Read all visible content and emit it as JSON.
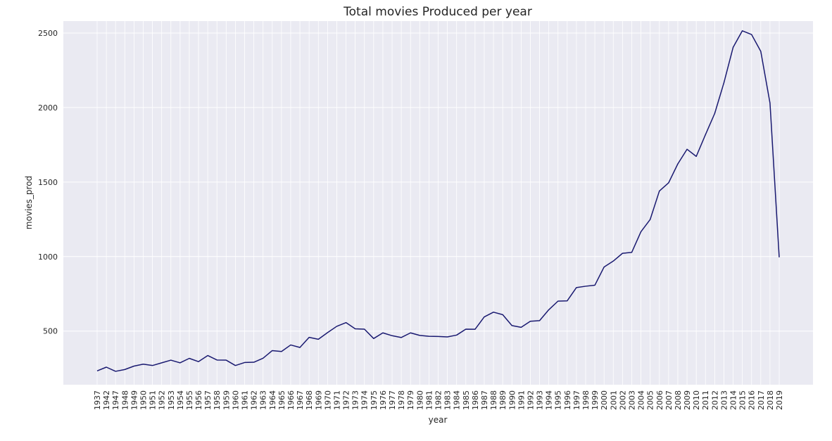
{
  "chart_data": {
    "type": "line",
    "title": "Total movies Produced per year",
    "xlabel": "year",
    "ylabel": "movies_prod",
    "ylim": [
      140,
      2580
    ],
    "yticks": [
      500,
      1000,
      1500,
      2000,
      2500
    ],
    "grid": true,
    "legend": "none",
    "colors": {
      "background": "#eaeaf2",
      "grid": "#ffffff",
      "line": "#191970"
    },
    "categories": [
      "1937",
      "1942",
      "1947",
      "1948",
      "1949",
      "1950",
      "1951",
      "1952",
      "1953",
      "1954",
      "1955",
      "1956",
      "1957",
      "1958",
      "1959",
      "1960",
      "1961",
      "1962",
      "1963",
      "1964",
      "1965",
      "1966",
      "1967",
      "1968",
      "1969",
      "1970",
      "1971",
      "1972",
      "1973",
      "1974",
      "1975",
      "1976",
      "1977",
      "1978",
      "1979",
      "1980",
      "1981",
      "1982",
      "1983",
      "1984",
      "1985",
      "1986",
      "1987",
      "1988",
      "1989",
      "1990",
      "1991",
      "1992",
      "1993",
      "1994",
      "1995",
      "1996",
      "1997",
      "1998",
      "1999",
      "2000",
      "2001",
      "2002",
      "2003",
      "2004",
      "2005",
      "2006",
      "2007",
      "2008",
      "2009",
      "2010",
      "2011",
      "2012",
      "2013",
      "2014",
      "2015",
      "2016",
      "2017",
      "2018",
      "2019"
    ],
    "series": [
      {
        "values": [
          233,
          258,
          230,
          242,
          265,
          278,
          269,
          287,
          305,
          287,
          317,
          295,
          336,
          306,
          305,
          269,
          289,
          291,
          318,
          369,
          363,
          407,
          390,
          458,
          445,
          490,
          532,
          557,
          515,
          513,
          450,
          488,
          469,
          457,
          488,
          471,
          465,
          464,
          461,
          473,
          513,
          512,
          595,
          627,
          610,
          537,
          525,
          566,
          570,
          643,
          701,
          703,
          792,
          801,
          808,
          930,
          970,
          1022,
          1028,
          1167,
          1249,
          1440,
          1495,
          1622,
          1720,
          1672,
          1818,
          1960,
          2166,
          2404,
          2515,
          2490,
          2377,
          2030,
          995
        ]
      }
    ]
  }
}
